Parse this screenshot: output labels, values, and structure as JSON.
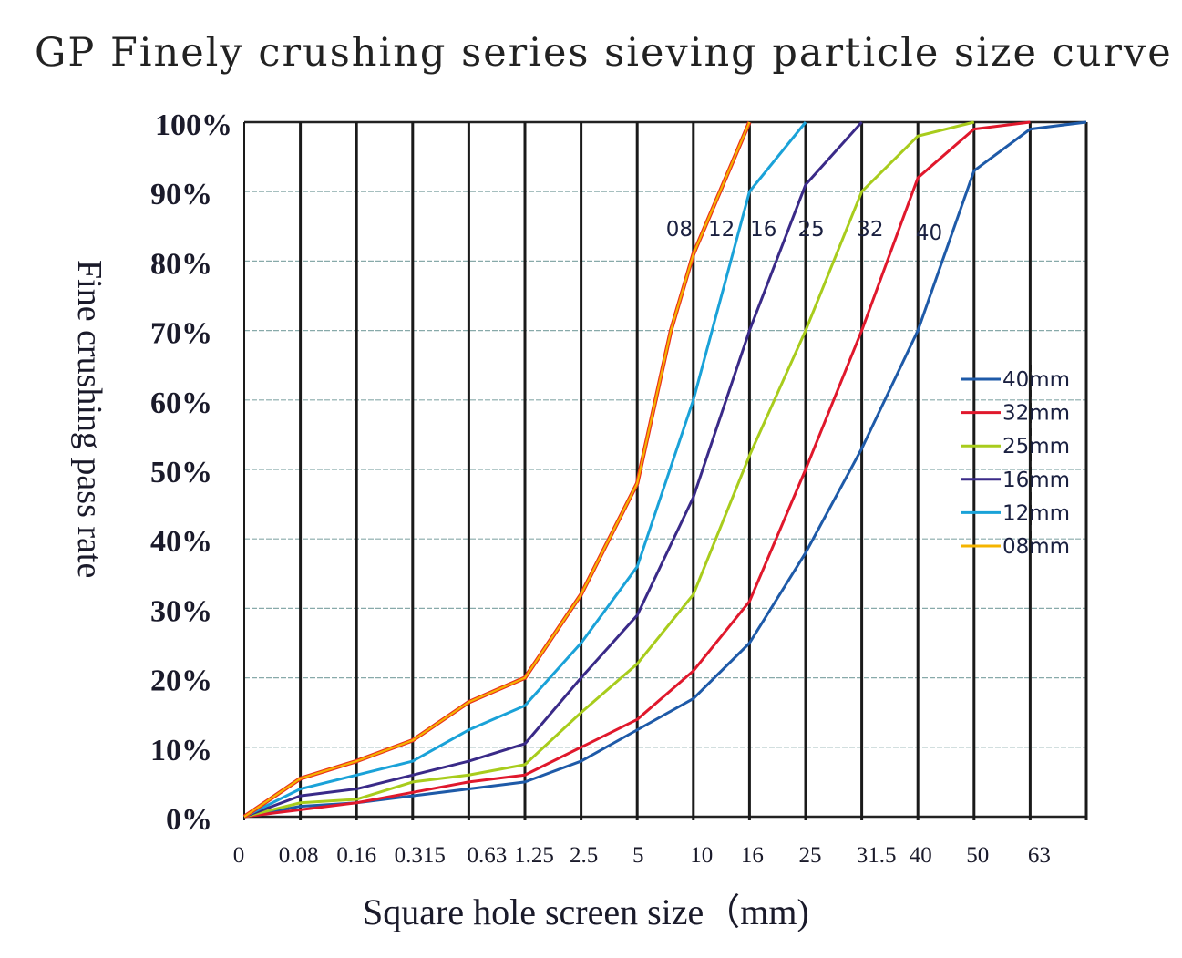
{
  "chart_data": {
    "type": "line",
    "title": "GP Finely crushing series sieving particle size curve",
    "xlabel": "Square hole screen size（mm)",
    "ylabel": "Fine crushing pass rate",
    "x_tick_labels": [
      "0",
      "0.08",
      "0.16",
      "0.315",
      "0.63",
      "1.25",
      "2.5",
      "5",
      "10",
      "16",
      "25",
      "31.5",
      "40",
      "50",
      "63"
    ],
    "y_tick_labels": [
      "0%",
      "10%",
      "20%",
      "30%",
      "40%",
      "50%",
      "60%",
      "70%",
      "80%",
      "90%",
      "100%"
    ],
    "ylim": [
      0,
      100
    ],
    "x_note": "x values are tick indices (0 = '0', 14 = '63', 15 = right edge)",
    "xlim": [
      0,
      15
    ],
    "grid": true,
    "legend_position": "right",
    "series": [
      {
        "name": "40mm",
        "color": "#1e5aa8",
        "x": [
          0,
          1,
          2,
          3,
          4,
          5,
          6,
          7,
          8,
          9,
          10,
          11,
          12,
          13,
          14,
          15
        ],
        "y": [
          0,
          1.5,
          2,
          3,
          4,
          5,
          8,
          12.5,
          17,
          25,
          38,
          53,
          70,
          93,
          99,
          100
        ]
      },
      {
        "name": "32mm",
        "color": "#e0182c",
        "x": [
          0,
          1,
          2,
          3,
          4,
          5,
          6,
          7,
          8,
          9,
          10,
          11,
          12,
          13,
          14
        ],
        "y": [
          0,
          1,
          2,
          3.5,
          5,
          6,
          10,
          14,
          21,
          31,
          50,
          70,
          92,
          99,
          100
        ]
      },
      {
        "name": "25mm",
        "color": "#a8cc1c",
        "x": [
          0,
          1,
          2,
          3,
          4,
          5,
          6,
          7,
          8,
          9,
          10,
          11,
          12,
          13
        ],
        "y": [
          0,
          2,
          2.5,
          5,
          6,
          7.5,
          15,
          22,
          32,
          52,
          70,
          90,
          98,
          100
        ]
      },
      {
        "name": "16mm",
        "color": "#3a2a88",
        "x": [
          0,
          1,
          2,
          3,
          4,
          5,
          6,
          7,
          8,
          9,
          10,
          11
        ],
        "y": [
          0,
          3,
          4,
          6,
          8,
          10.5,
          20,
          29,
          46,
          70,
          91,
          100
        ]
      },
      {
        "name": "12mm",
        "color": "#1aa2d8",
        "x": [
          0,
          1,
          2,
          3,
          4,
          5,
          6,
          7,
          8,
          9,
          10
        ],
        "y": [
          0,
          4,
          6,
          8,
          12.5,
          16,
          25,
          36,
          60,
          90,
          100
        ]
      },
      {
        "name": "08mm",
        "color": "#f5b400",
        "x": [
          0,
          1,
          2,
          3,
          4,
          5,
          6,
          7,
          7.6,
          8,
          9
        ],
        "y": [
          0,
          5.5,
          8,
          11,
          16.5,
          20,
          32,
          48,
          70,
          81,
          100
        ]
      }
    ],
    "annotations": [
      {
        "text": "08",
        "x": 7.75
      },
      {
        "text": "12",
        "x": 8.5
      },
      {
        "text": "16",
        "x": 9.25
      },
      {
        "text": "25",
        "x": 10.1
      },
      {
        "text": "32",
        "x": 11.15
      },
      {
        "text": "40",
        "x": 12.2
      }
    ]
  }
}
